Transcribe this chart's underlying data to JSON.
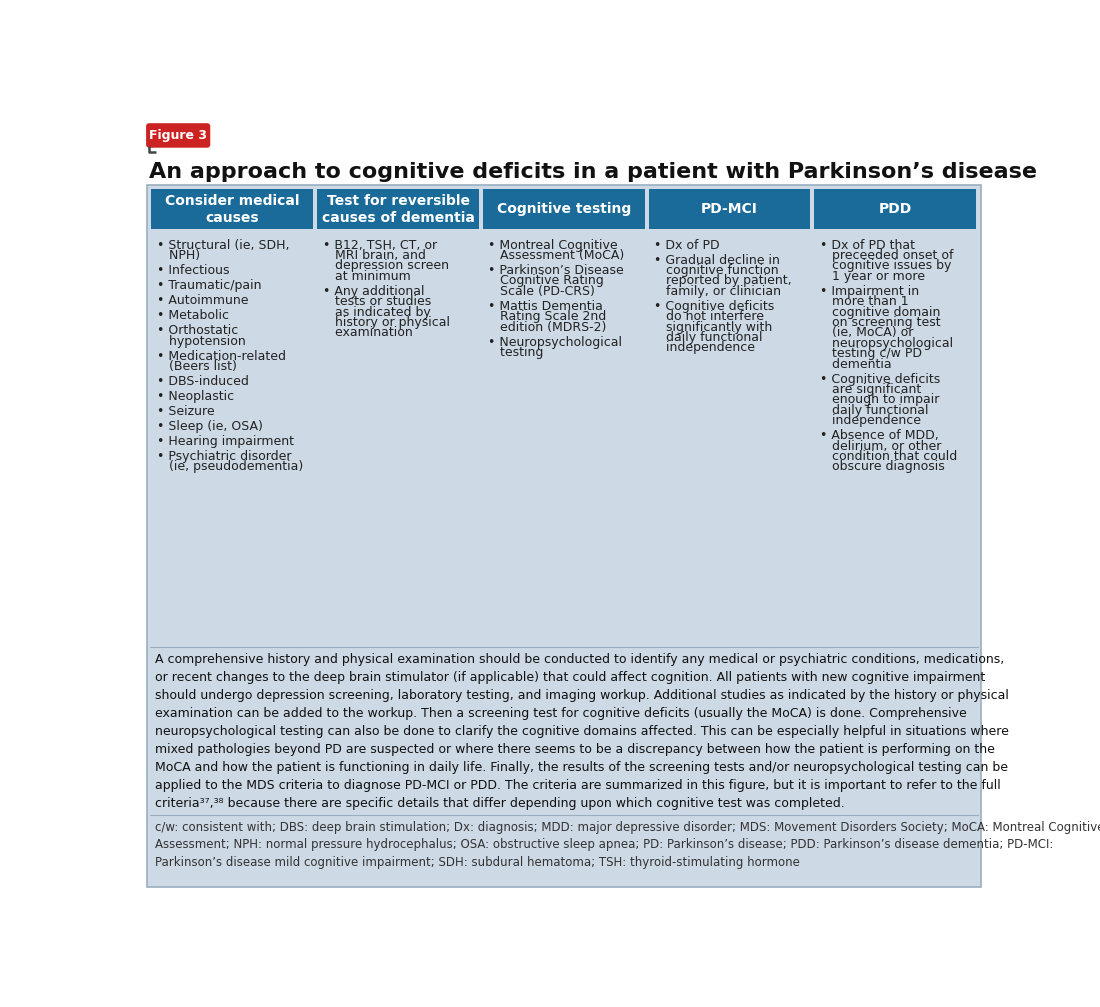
{
  "title": "An approach to cognitive deficits in a patient with Parkinson’s disease",
  "figure_label": "Figure 3",
  "figure_label_bg": "#cc2222",
  "figure_label_color": "#ffffff",
  "background_color": "#cdd9e5",
  "outer_bg": "#ffffff",
  "header_bg": "#1a6b9a",
  "header_text_color": "#ffffff",
  "text_color": "#222222",
  "columns": [
    {
      "header": "Consider medical\ncauses",
      "items": [
        "• Structural (ie, SDH,\n   NPH)",
        "• Infectious",
        "• Traumatic/pain",
        "• Autoimmune",
        "• Metabolic",
        "• Orthostatic\n   hypotension",
        "• Medication-related\n   (Beers list)",
        "• DBS-induced",
        "• Neoplastic",
        "• Seizure",
        "• Sleep (ie, OSA)",
        "• Hearing impairment",
        "• Psychiatric disorder\n   (ie, pseudodementia)"
      ]
    },
    {
      "header": "Test for reversible\ncauses of dementia",
      "items": [
        "• B12, TSH, CT, or\n   MRI brain, and\n   depression screen\n   at minimum",
        "• Any additional\n   tests or studies\n   as indicated by\n   history or physical\n   examination"
      ]
    },
    {
      "header": "Cognitive testing",
      "items": [
        "• Montreal Cognitive\n   Assessment (MoCA)",
        "• Parkinson’s Disease\n   Cognitive Rating\n   Scale (PD-CRS)",
        "• Mattis Dementia\n   Rating Scale 2nd\n   edition (MDRS-2)",
        "• Neuropsychological\n   testing"
      ]
    },
    {
      "header": "PD-MCI",
      "items": [
        "• Dx of PD",
        "• Gradual decline in\n   cognitive function\n   reported by patient,\n   family, or clinician",
        "• Cognitive deficits\n   do not interfere\n   significantly with\n   daily functional\n   independence"
      ]
    },
    {
      "header": "PDD",
      "items": [
        "• Dx of PD that\n   preceeded onset of\n   cognitive issues by\n   1 year or more",
        "• Impairment in\n   more than 1\n   cognitive domain\n   on screening test\n   (ie, MoCA) or\n   neuropsychological\n   testing c/w PD\n   dementia",
        "• Cognitive deficits\n   are significant\n   enough to impair\n   daily functional\n   independence",
        "• Absence of MDD,\n   delirium, or other\n   condition that could\n   obscure diagnosis"
      ]
    }
  ],
  "body_text": "A comprehensive history and physical examination should be conducted to identify any medical or psychiatric conditions, medications,\nor recent changes to the deep brain stimulator (if applicable) that could affect cognition. All patients with new cognitive impairment\nshould undergo depression screening, laboratory testing, and imaging workup. Additional studies as indicated by the history or physical\nexamination can be added to the workup. Then a screening test for cognitive deficits (usually the MoCA) is done. Comprehensive\nneuropsychological testing can also be done to clarify the cognitive domains affected. This can be especially helpful in situations where\nmixed pathologies beyond PD are suspected or where there seems to be a discrepancy between how the patient is performing on the\nMoCA and how the patient is functioning in daily life. Finally, the results of the screening tests and/or neuropsychological testing can be\napplied to the MDS criteria to diagnose PD-MCI or PDD. The criteria are summarized in this figure, but it is important to refer to the full\ncriteria³⁷,³⁸ because there are specific details that differ depending upon which cognitive test was completed.",
  "footnote_text": "c/w: consistent with; DBS: deep brain stimulation; Dx: diagnosis; MDD: major depressive disorder; MDS: Movement Disorders Society; MoCA: Montreal Cognitive\nAssessment; NPH: normal pressure hydrocephalus; OSA: obstructive sleep apnea; PD: Parkinson’s disease; PDD: Parkinson’s disease dementia; PD-MCI:\nParkinson’s disease mild cognitive impairment; SDH: subdural hematoma; TSH: thyroid-stimulating hormone"
}
